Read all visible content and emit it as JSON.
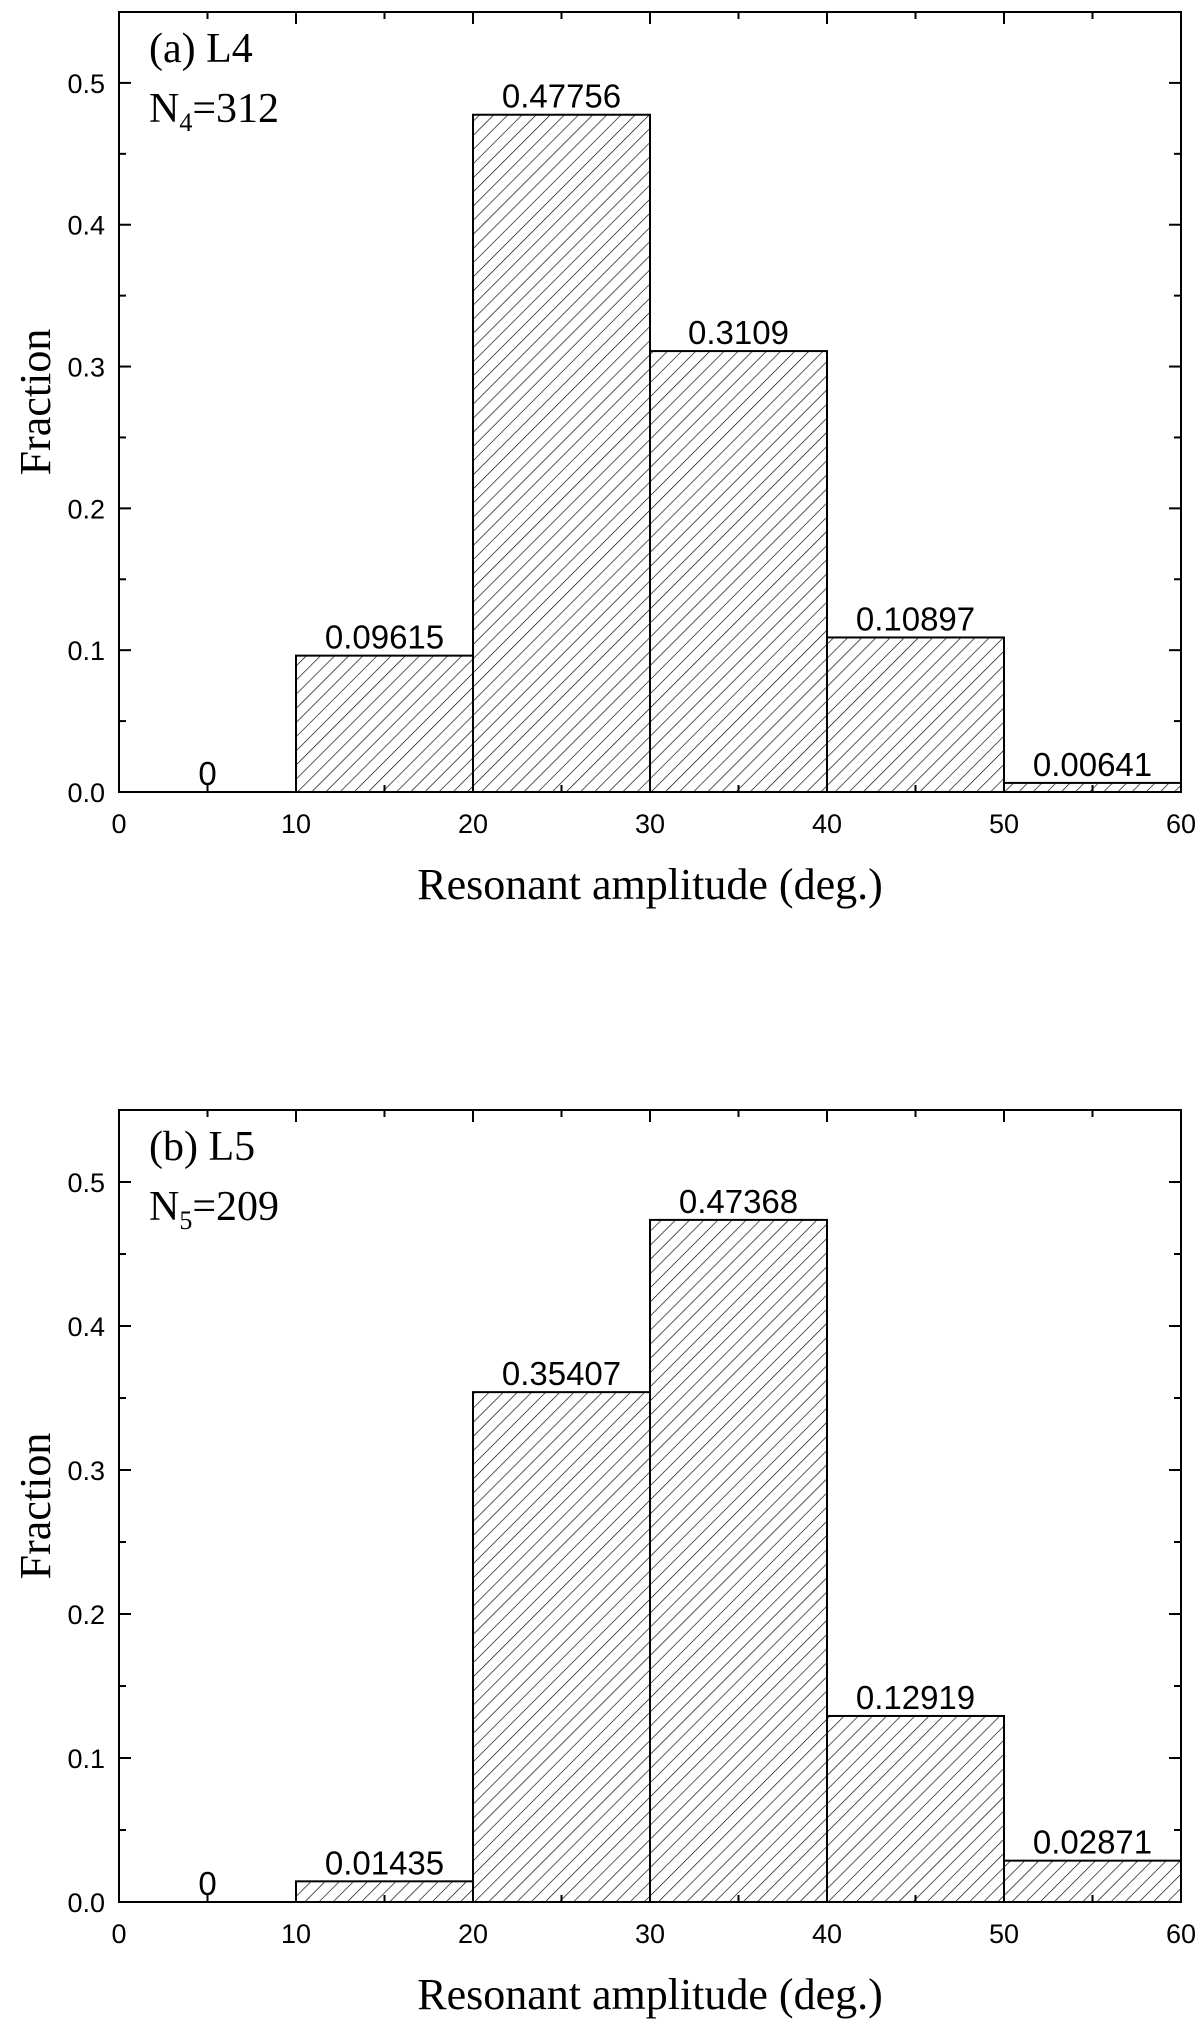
{
  "chart_data": [
    {
      "type": "bar",
      "panel_label": "(a) L4",
      "count_label": {
        "main": "N",
        "sub": "4",
        "tail": "=312"
      },
      "xlabel": "Resonant amplitude (deg.)",
      "ylabel": "Fraction",
      "xlim": [
        0,
        60
      ],
      "ylim": [
        0,
        0.55
      ],
      "xticks": [
        "0",
        "10",
        "20",
        "30",
        "40",
        "50",
        "60"
      ],
      "yticks": [
        "0.0",
        "0.1",
        "0.2",
        "0.3",
        "0.4",
        "0.5"
      ],
      "bins": [
        [
          0,
          10
        ],
        [
          10,
          20
        ],
        [
          20,
          30
        ],
        [
          30,
          40
        ],
        [
          40,
          50
        ],
        [
          50,
          60
        ]
      ],
      "values": [
        0,
        0.09615,
        0.47756,
        0.3109,
        0.10897,
        0.00641
      ],
      "value_labels": [
        "0",
        "0.09615",
        "0.47756",
        "0.3109",
        "0.10897",
        "0.00641"
      ],
      "fill": "diagonal hatch",
      "grid": false
    },
    {
      "type": "bar",
      "panel_label": "(b) L5",
      "count_label": {
        "main": "N",
        "sub": "5",
        "tail": "=209"
      },
      "xlabel": "Resonant amplitude (deg.)",
      "ylabel": "Fraction",
      "xlim": [
        0,
        60
      ],
      "ylim": [
        0,
        0.55
      ],
      "xticks": [
        "0",
        "10",
        "20",
        "30",
        "40",
        "50",
        "60"
      ],
      "yticks": [
        "0.0",
        "0.1",
        "0.2",
        "0.3",
        "0.4",
        "0.5"
      ],
      "bins": [
        [
          0,
          10
        ],
        [
          10,
          20
        ],
        [
          20,
          30
        ],
        [
          30,
          40
        ],
        [
          40,
          50
        ],
        [
          50,
          60
        ]
      ],
      "values": [
        0,
        0.01435,
        0.35407,
        0.47368,
        0.12919,
        0.02871
      ],
      "value_labels": [
        "0",
        "0.01435",
        "0.35407",
        "0.47368",
        "0.12919",
        "0.02871"
      ],
      "fill": "diagonal hatch",
      "grid": false
    }
  ]
}
